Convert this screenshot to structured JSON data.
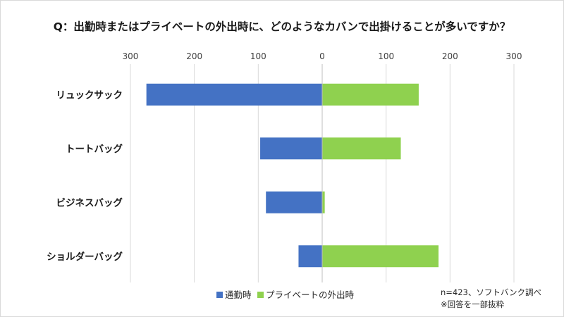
{
  "chart_data": {
    "type": "bar",
    "orientation": "horizontal",
    "layout": "diverging",
    "title": "Q：出勤時またはプライベートの外出時に、どのようなカバンで出掛けることが多いですか？",
    "x_ticks": [
      "300",
      "200",
      "100",
      "0",
      "100",
      "200",
      "300"
    ],
    "xlim": [
      -300,
      300
    ],
    "grid": true,
    "legend_position": "bottom",
    "categories": [
      "リュックサック",
      "トートバッグ",
      "ビジネスバッグ",
      "ショルダーバッグ"
    ],
    "series": [
      {
        "name": "通勤時",
        "side": "left",
        "color": "#4472c4",
        "values": [
          275,
          97,
          88,
          37
        ]
      },
      {
        "name": "プライベートの外出時",
        "side": "right",
        "color": "#8fd14f",
        "values": [
          151,
          123,
          4,
          182
        ]
      }
    ],
    "notes": [
      "n=423、ソフトバンク調べ",
      "※回答を一部抜粋"
    ]
  }
}
